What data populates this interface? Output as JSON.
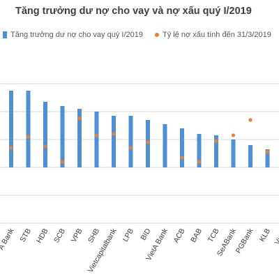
{
  "chart_data": {
    "type": "bar",
    "title": "Tăng trưởng dư nợ cho vay và nợ xấu quý I/2019",
    "xlabel": "",
    "ylabel": "",
    "legend_position": "top",
    "gridlines": true,
    "categories": [
      "A Bank",
      "STB",
      "HDB",
      "SCB",
      "VPB",
      "SHB",
      "Vietcapitalbank",
      "LPB",
      "BID",
      "VietA Bank",
      "ACB",
      "BAB",
      "TCB",
      "SeABank",
      "PGBank",
      "KLB",
      "VietB"
    ],
    "series": [
      {
        "name": "Tăng trưởng dư nợ cho vay quý I/2019",
        "type": "bar",
        "color": "#4f8fd6",
        "values": [
          5.5,
          5.5,
          4.7,
          4.4,
          4.2,
          4.0,
          3.7,
          3.7,
          3.4,
          3.1,
          2.8,
          2.4,
          2.3,
          2.0,
          1.6,
          1.3,
          null
        ]
      },
      {
        "name": "Tỷ lệ nợ xấu tính đến 31/3/2019",
        "type": "scatter",
        "color": "#ed7d31",
        "values": [
          1.4,
          2.2,
          1.5,
          0.4,
          3.5,
          2.3,
          2.4,
          1.4,
          1.8,
          null,
          0.7,
          0.4,
          1.9,
          2.3,
          3.4,
          1.1,
          null
        ]
      }
    ]
  }
}
